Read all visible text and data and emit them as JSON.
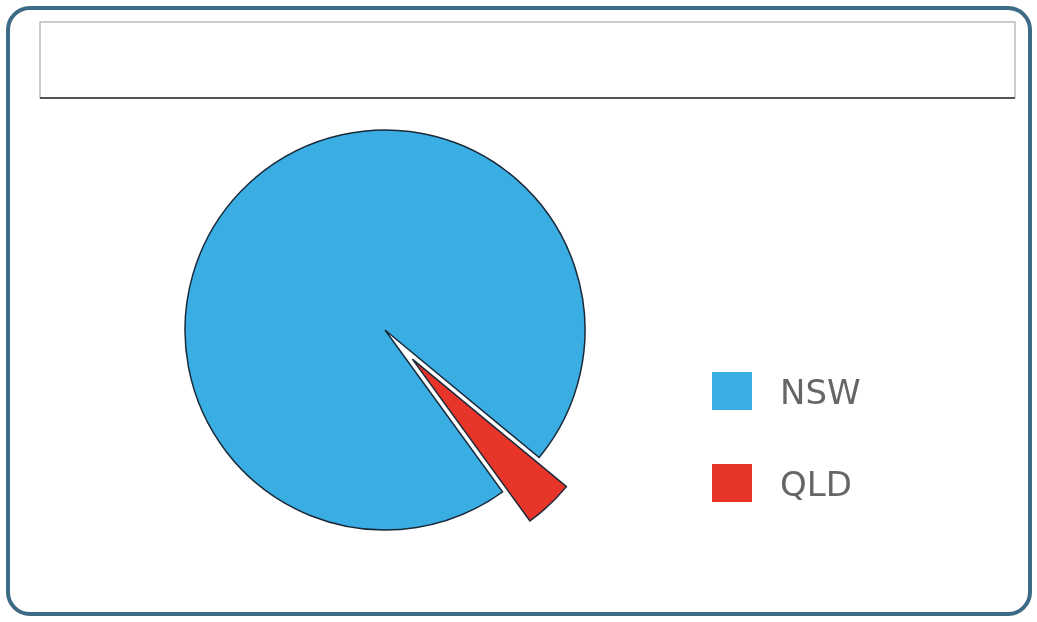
{
  "chart_data": {
    "type": "pie",
    "categories": [
      "NSW",
      "QLD"
    ],
    "values": [
      96,
      4
    ],
    "colors": [
      "#3aaee3",
      "#e8352a"
    ],
    "legend": "right"
  }
}
